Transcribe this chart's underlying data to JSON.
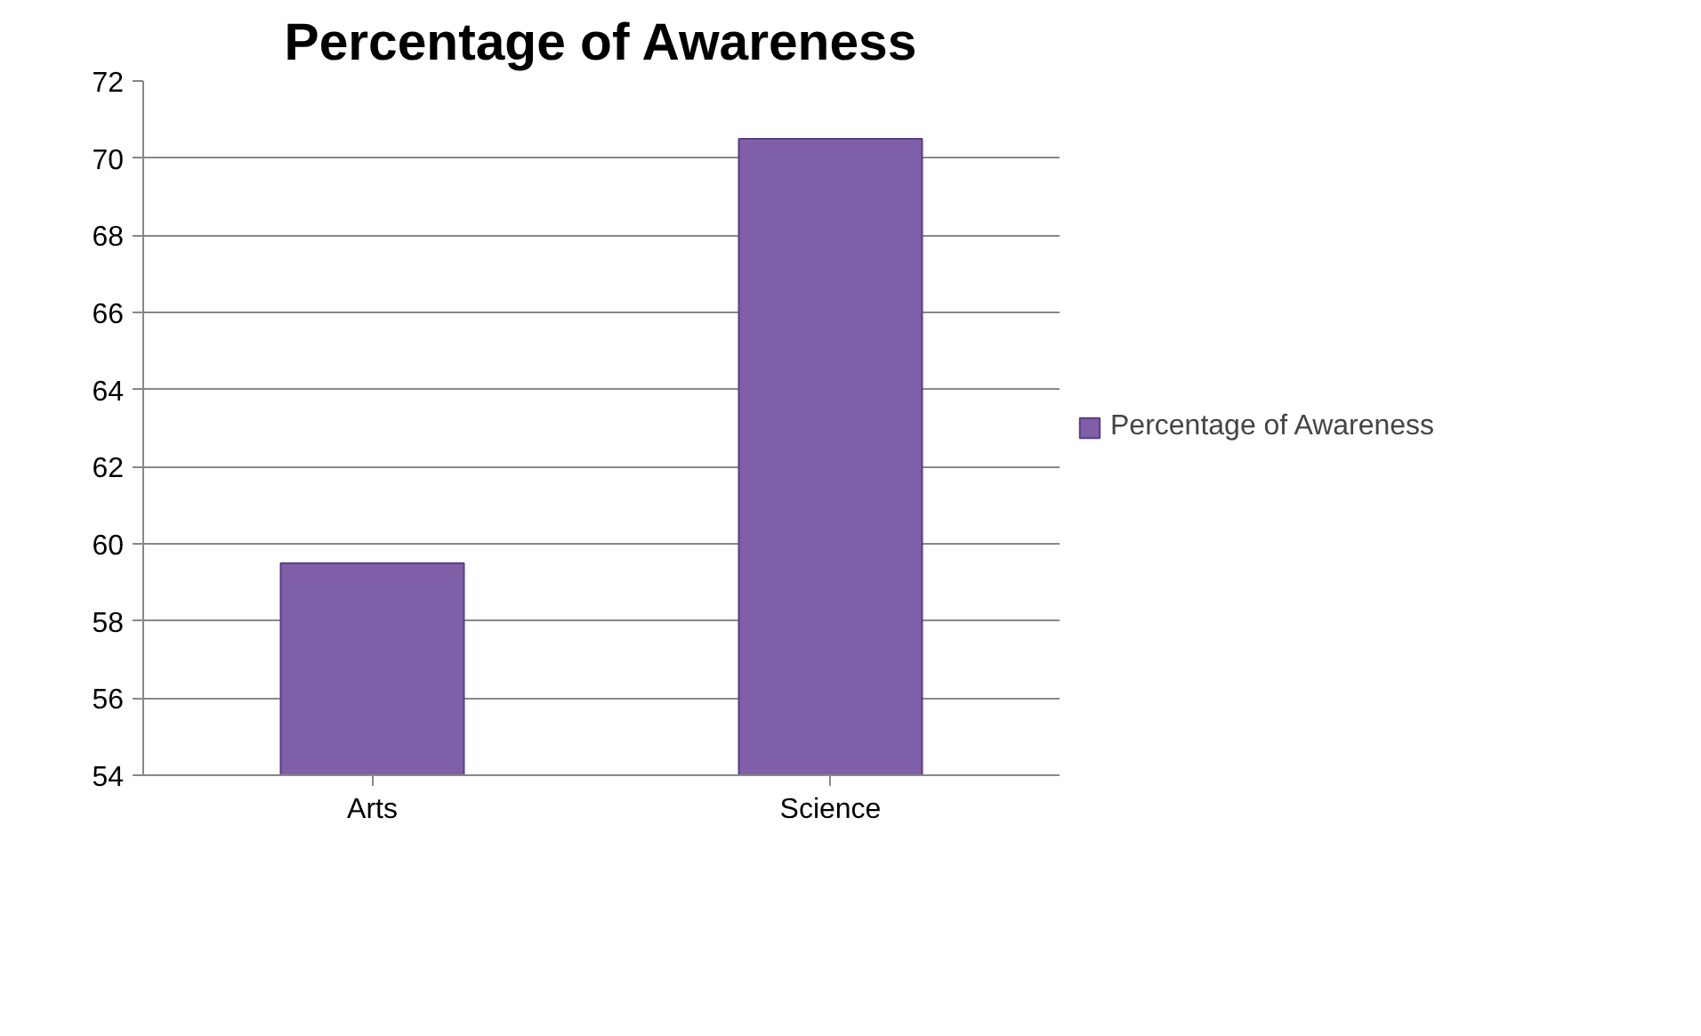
{
  "chart_data": {
    "type": "bar",
    "title": "Percentage of Awareness",
    "categories": [
      "Arts",
      "Science"
    ],
    "series": [
      {
        "name": "Percentage of Awareness",
        "color": "#7f5fa8",
        "values": [
          59.5,
          70.5
        ]
      }
    ],
    "ylim": [
      54,
      72
    ],
    "yticks": [
      54,
      56,
      58,
      60,
      62,
      64,
      66,
      68,
      70,
      72
    ],
    "grid": "y",
    "legend": "right"
  }
}
